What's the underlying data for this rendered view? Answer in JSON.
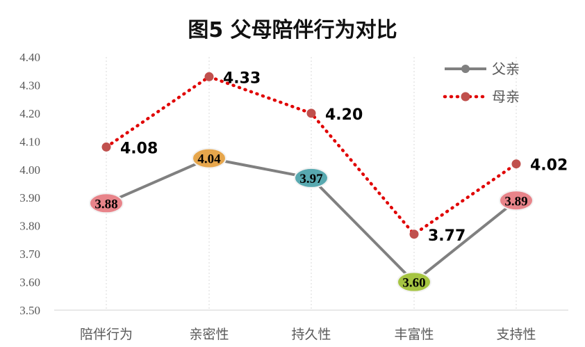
{
  "chart_data": {
    "type": "line",
    "title": "图5 父母陪伴行为对比",
    "categories": [
      "陪伴行为",
      "亲密性",
      "持久性",
      "丰富性",
      "支持性"
    ],
    "ylim": [
      3.5,
      4.4
    ],
    "yticks": [
      "3.50",
      "3.60",
      "3.70",
      "3.80",
      "3.90",
      "4.00",
      "4.10",
      "4.20",
      "4.30",
      "4.40"
    ],
    "series": [
      {
        "name": "父亲",
        "values": [
          3.88,
          4.04,
          3.97,
          3.6,
          3.89
        ],
        "labels": [
          "3.88",
          "4.04",
          "3.97",
          "3.60",
          "3.89"
        ],
        "color": "#808080",
        "label_bubble_colors": [
          "#e8848a",
          "#e6a64c",
          "#58a9b0",
          "#a6c542",
          "#e8848a"
        ]
      },
      {
        "name": "母亲",
        "values": [
          4.08,
          4.33,
          4.2,
          3.77,
          4.02
        ],
        "labels": [
          "4.08",
          "4.33",
          "4.20",
          "3.77",
          "4.02"
        ],
        "color": "#e00000",
        "marker_color": "#c0504d"
      }
    ],
    "legend_position": "top-right",
    "grid": "vertical-dotted"
  }
}
